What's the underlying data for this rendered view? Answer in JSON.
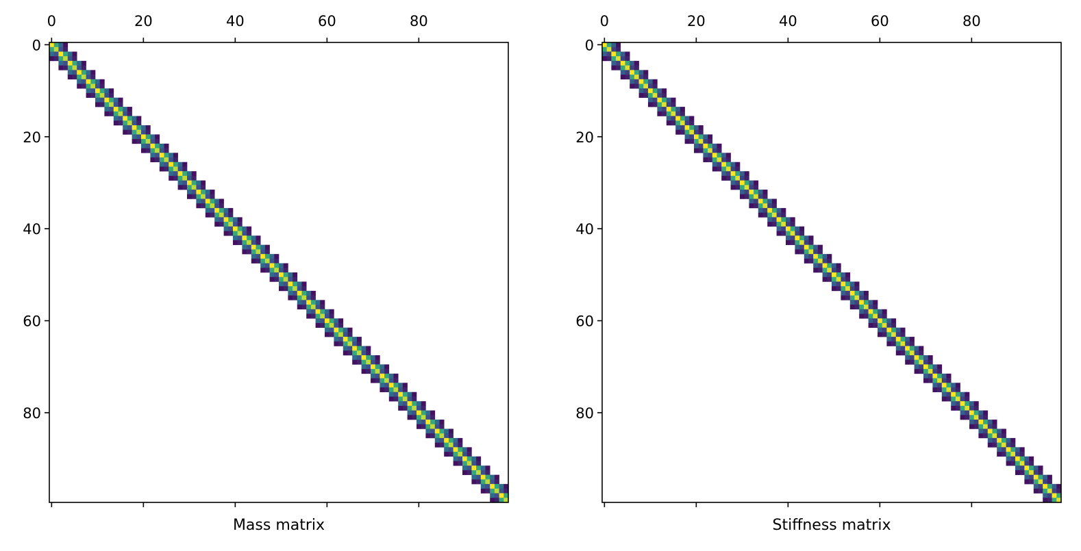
{
  "chart_data": [
    {
      "type": "heatmap",
      "xlabel": "Mass matrix",
      "rows": 100,
      "cols": 100,
      "xlim": [
        0,
        99
      ],
      "ylim": [
        99,
        0
      ],
      "xticks": [
        0,
        20,
        40,
        60,
        80
      ],
      "yticks": [
        0,
        20,
        40,
        60,
        80
      ],
      "x_tick_labels": [
        "0",
        "20",
        "40",
        "60",
        "80"
      ],
      "y_tick_labels": [
        "0",
        "20",
        "40",
        "60",
        "80"
      ],
      "x_ticks_position": "top",
      "grid": false,
      "colormap": "viridis",
      "pattern": "block-diagonal banded matrix, 4x4 element blocks overlapping every 2 indices",
      "block_size": 4,
      "block_stride": 2,
      "block_pattern": [
        [
          1.0,
          0.6,
          0.35,
          0.05
        ],
        [
          0.6,
          0.9,
          0.25,
          0.1
        ],
        [
          0.35,
          0.25,
          1.0,
          0.6
        ],
        [
          0.05,
          0.1,
          0.6,
          0.9
        ]
      ]
    },
    {
      "type": "heatmap",
      "xlabel": "Stiffness matrix",
      "rows": 100,
      "cols": 100,
      "xlim": [
        0,
        99
      ],
      "ylim": [
        99,
        0
      ],
      "xticks": [
        0,
        20,
        40,
        60,
        80
      ],
      "yticks": [
        0,
        20,
        40,
        60,
        80
      ],
      "x_tick_labels": [
        "0",
        "20",
        "40",
        "60",
        "80"
      ],
      "y_tick_labels": [
        "0",
        "20",
        "40",
        "60",
        "80"
      ],
      "x_ticks_position": "top",
      "grid": false,
      "colormap": "viridis",
      "pattern": "block-diagonal banded matrix, 4x4 element blocks overlapping every 2 indices",
      "block_size": 4,
      "block_stride": 2,
      "block_pattern": [
        [
          1.0,
          0.6,
          0.3,
          0.05
        ],
        [
          0.6,
          0.95,
          0.2,
          0.1
        ],
        [
          0.3,
          0.2,
          1.0,
          0.6
        ],
        [
          0.05,
          0.1,
          0.6,
          0.95
        ]
      ]
    }
  ]
}
